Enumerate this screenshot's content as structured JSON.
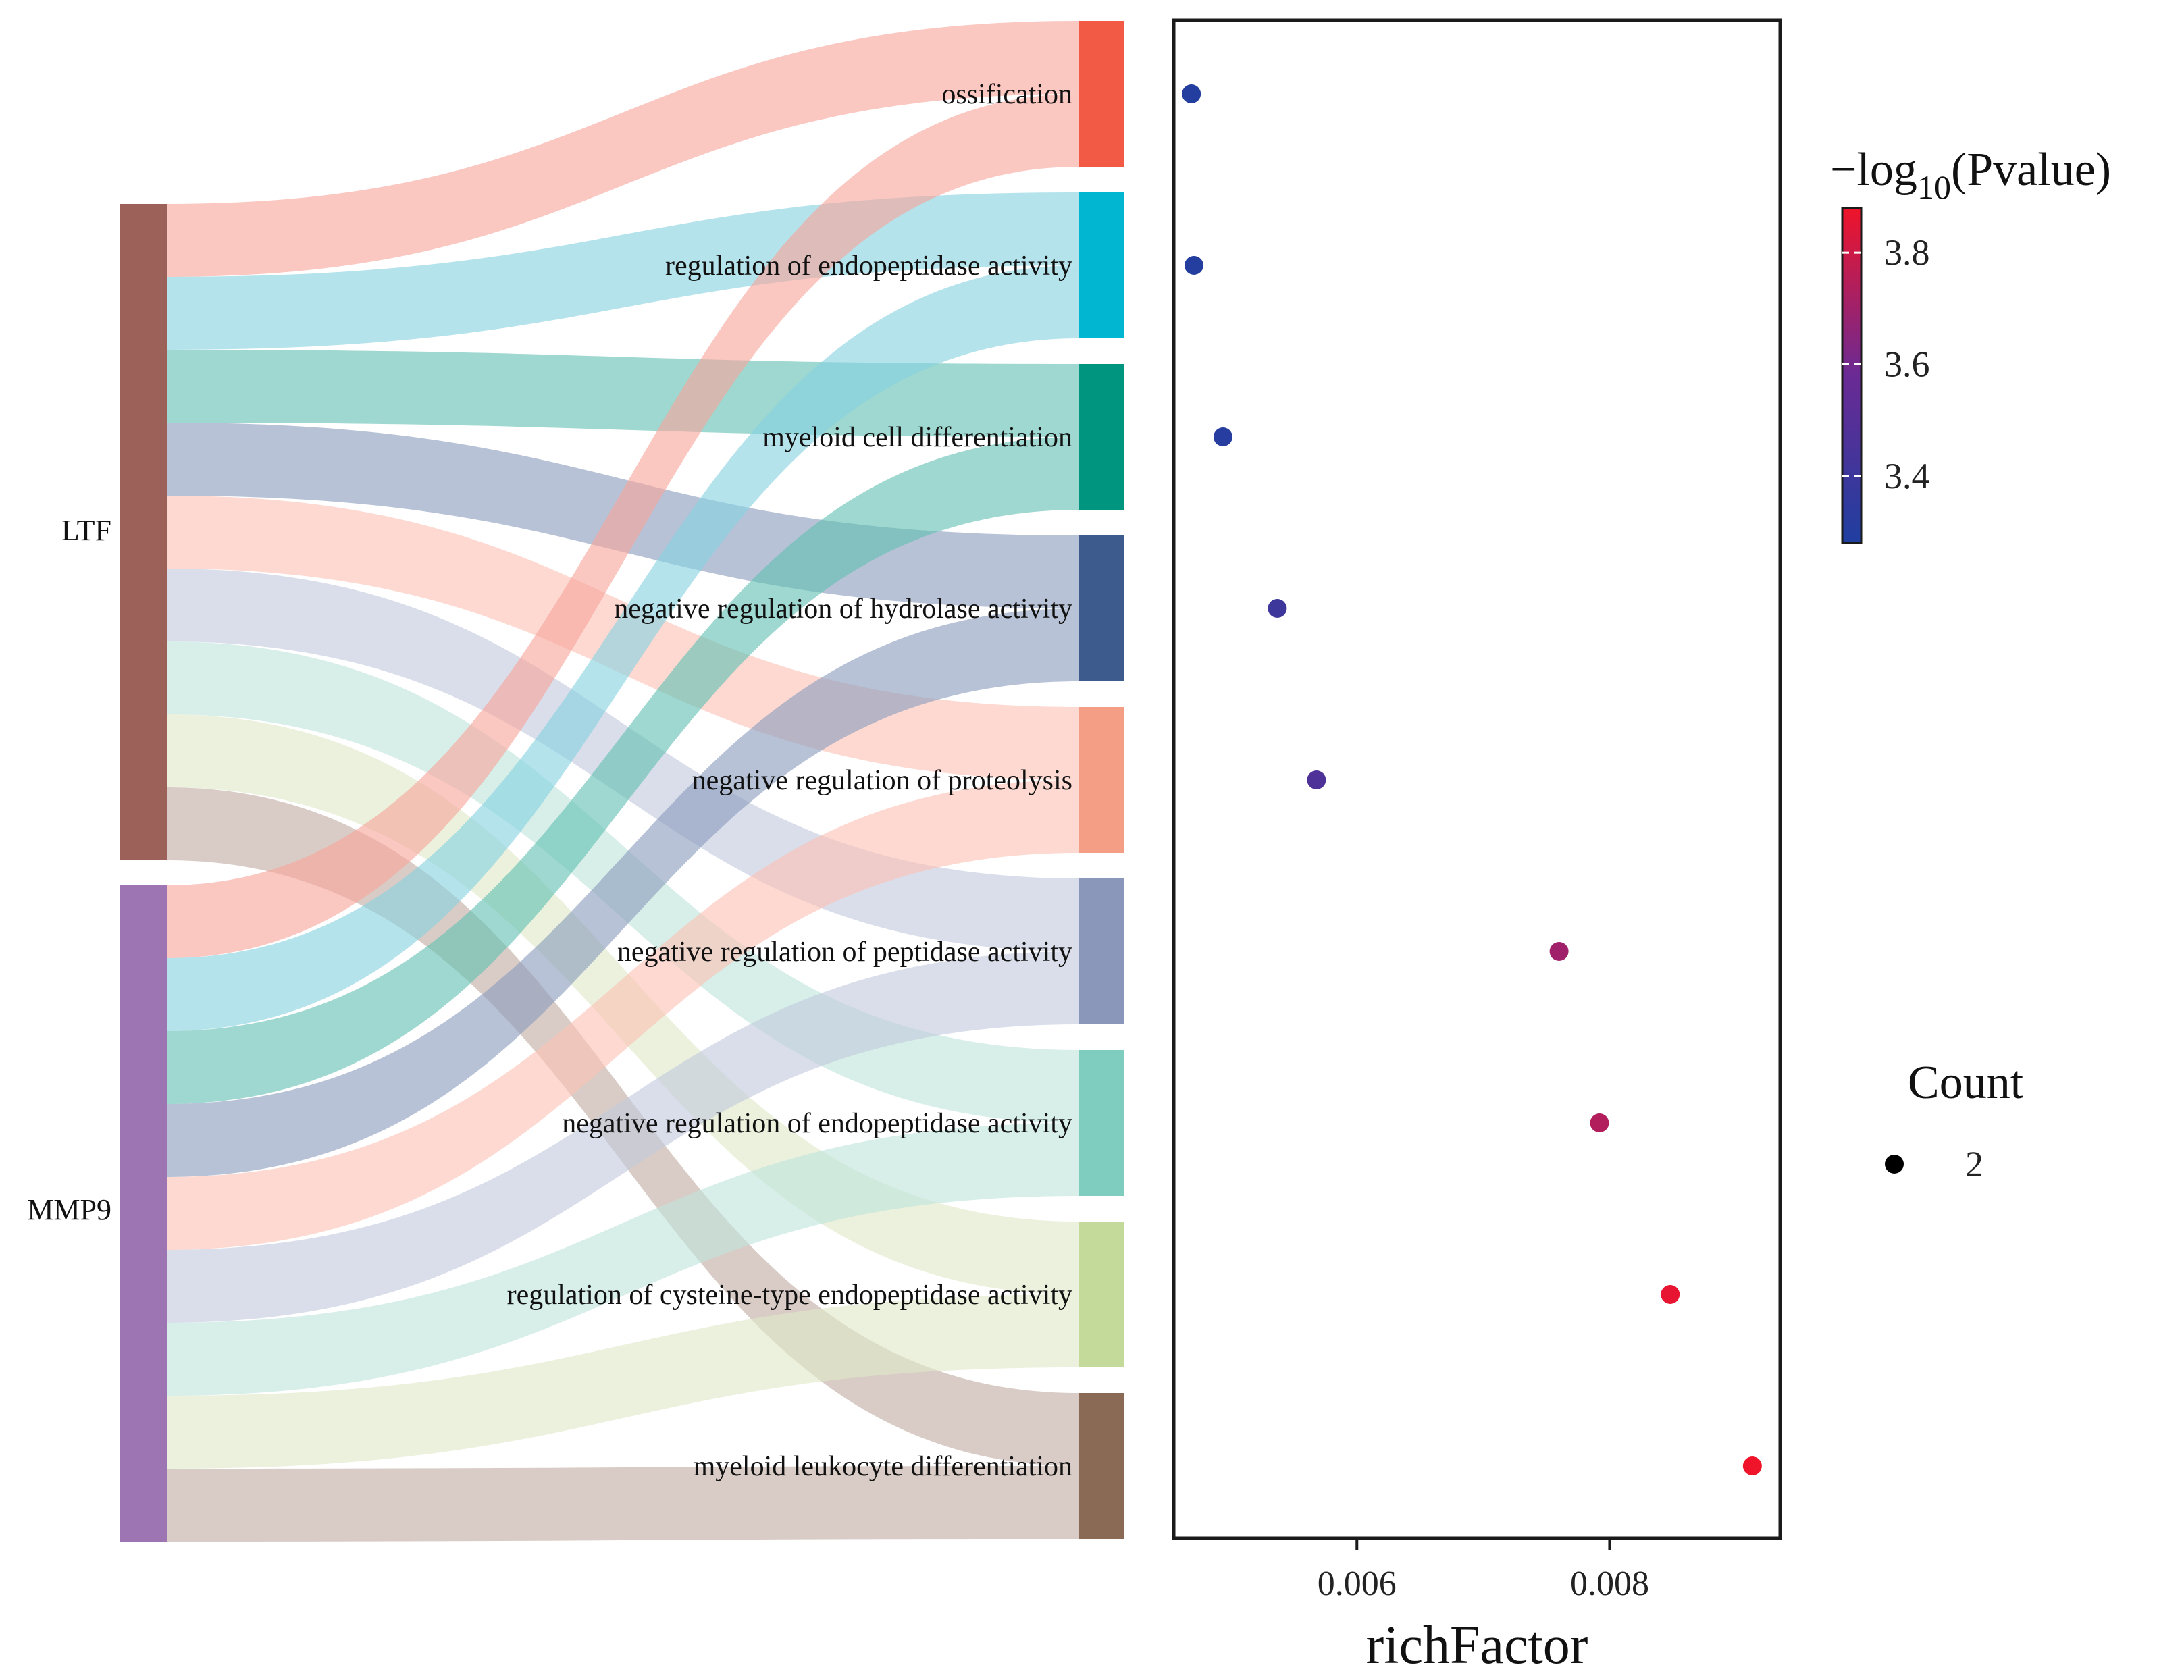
{
  "chart_data": {
    "type": "sankey-dot",
    "sankey": {
      "sources": [
        {
          "name": "LTF",
          "color": "#9C6259"
        },
        {
          "name": "MMP9",
          "color": "#9E75B3"
        }
      ],
      "targets": [
        {
          "name": "ossification",
          "color": "#F25A46"
        },
        {
          "name": "regulation of endopeptidase activity",
          "color": "#00B6D0"
        },
        {
          "name": "myeloid cell differentiation",
          "color": "#00957E"
        },
        {
          "name": "negative regulation of hydrolase activity",
          "color": "#3D5B8C"
        },
        {
          "name": "negative regulation of proteolysis",
          "color": "#F59E86"
        },
        {
          "name": "negative regulation of peptidase activity",
          "color": "#8B96BB"
        },
        {
          "name": "negative regulation of endopeptidase activity",
          "color": "#7ECDBF"
        },
        {
          "name": "regulation of cysteine-type endopeptidase activity",
          "color": "#C3DA9A"
        },
        {
          "name": "myeloid leukocyte differentiation",
          "color": "#8A6A55"
        }
      ],
      "flow_colors": [
        "#F7A59B",
        "#86D2E1",
        "#63C0B3",
        "#8B9CBD",
        "#FBC2B5",
        "#C2CADD",
        "#BFE3DB",
        "#DEE8C8",
        "#C2ADA3"
      ],
      "links_note": "each gene links to each term with value 1"
    },
    "dotplot": {
      "terms": [
        "ossification",
        "regulation of endopeptidase activity",
        "myeloid cell differentiation",
        "negative regulation of hydrolase activity",
        "negative regulation of proteolysis",
        "negative regulation of peptidase activity",
        "negative regulation of endopeptidase activity",
        "regulation of cysteine-type endopeptidase activity",
        "myeloid leukocyte differentiation"
      ],
      "richFactor": [
        0.00469,
        0.00471,
        0.00494,
        0.00537,
        0.00568,
        0.0076,
        0.00792,
        0.00848,
        0.00913
      ],
      "neg_log10_pvalue": [
        3.3,
        3.3,
        3.31,
        3.4,
        3.47,
        3.7,
        3.74,
        3.86,
        3.88
      ],
      "count": [
        2,
        2,
        2,
        2,
        2,
        2,
        2,
        2,
        2
      ],
      "xlabel": "richFactor",
      "xlim": [
        0.00455,
        0.00935
      ],
      "xticks": [
        0.006,
        0.008
      ],
      "xtick_labels": [
        "0.006",
        "0.008"
      ]
    },
    "color_legend": {
      "title_prefix": "−log",
      "title_sub": "10",
      "title_suffix": "(Pvalue)",
      "min": 3.28,
      "max": 3.88,
      "ticks": [
        3.4,
        3.6,
        3.8
      ],
      "tick_labels": [
        "3.4",
        "3.6",
        "3.8"
      ],
      "low_color": "#1F3FA0",
      "mid_color": "#6A2A94",
      "high_color": "#F0142A"
    },
    "size_legend": {
      "title": "Count",
      "entries": [
        {
          "label": "2",
          "value": 2
        }
      ]
    }
  }
}
